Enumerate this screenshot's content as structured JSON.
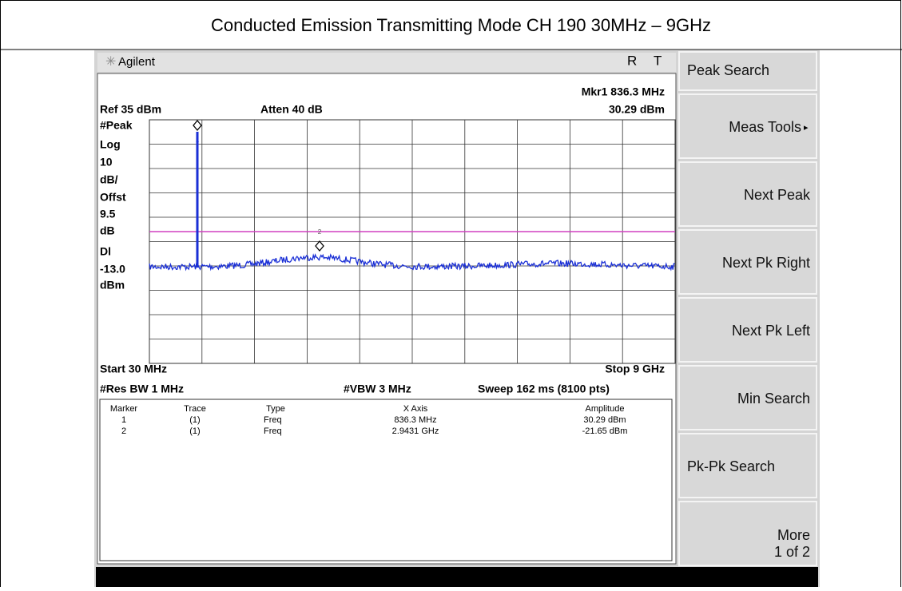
{
  "title": "Conducted Emission Transmitting Mode CH 190 30MHz – 9GHz",
  "header": {
    "brand": "Agilent",
    "indicators": [
      "R",
      "T"
    ]
  },
  "annotations": {
    "marker_readout": "Mkr1 836.3 MHz",
    "ref_level": "Ref 35 dBm",
    "attenuation": "Atten 40 dB",
    "marker_amplitude": "30.29 dBm",
    "left_labels": [
      "#Peak",
      "Log",
      "10",
      "dB/",
      "Offst",
      "9.5",
      "dB",
      "Dl",
      "-13.0",
      "dBm"
    ],
    "start": "Start 30 MHz",
    "stop": "Stop 9 GHz",
    "res_bw": "#Res BW 1 MHz",
    "vbw": "#VBW 3 MHz",
    "sweep": "Sweep 162 ms (8100 pts)"
  },
  "marker_table": {
    "columns": [
      "Marker",
      "Trace",
      "Type",
      "X Axis",
      "Amplitude"
    ],
    "rows": [
      [
        "1",
        "(1)",
        "Freq",
        "836.3 MHz",
        "30.29 dBm"
      ],
      [
        "2",
        "(1)",
        "Freq",
        "2.9431 GHz",
        "-21.65 dBm"
      ]
    ]
  },
  "marker_labels": [
    "1",
    "2"
  ],
  "softkeys": [
    "Peak Search",
    "Meas Tools",
    "Next Peak",
    "Next Pk Right",
    "Next Pk Left",
    "Min Search",
    "Pk-Pk Search",
    "More"
  ],
  "softkey_sub": "1 of 2"
}
